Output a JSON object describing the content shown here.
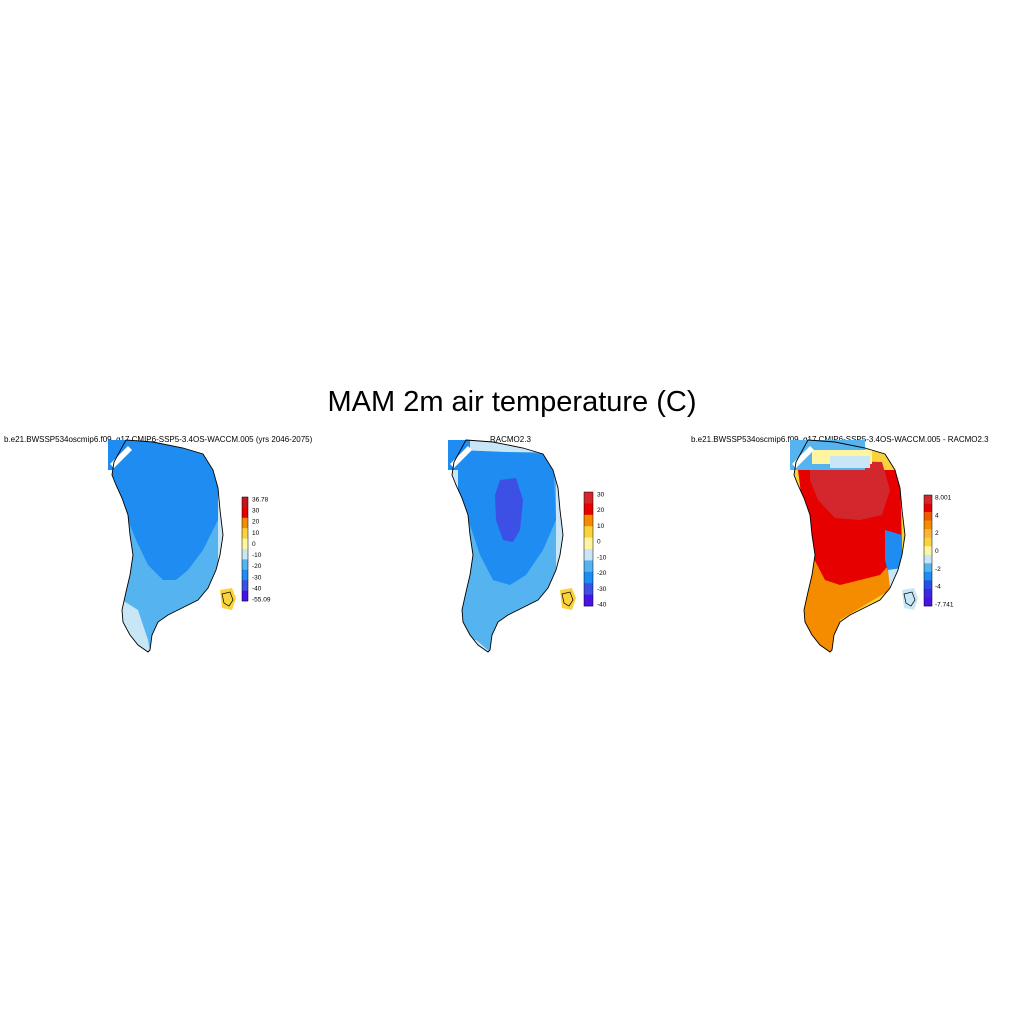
{
  "figure": {
    "title": "MAM 2m air temperature (C)"
  },
  "panels": [
    {
      "id": "model",
      "title": "b.e21.BWSSP534oscmip6.f09_g17.CMIP6-SSP5-3.4OS-WACCM.005 (yrs 2046-2075)",
      "colorbar": {
        "labels": [
          "36.78",
          "30",
          "20",
          "10",
          "0",
          "-10",
          "-20",
          "-30",
          "-40",
          "-55.09"
        ],
        "colors": [
          "#c8141e",
          "#e60000",
          "#f58c00",
          "#fad23c",
          "#fff5a0",
          "#c8e6f5",
          "#55b4f0",
          "#1e8cf0",
          "#3c50e6",
          "#4614e6"
        ]
      }
    },
    {
      "id": "racmo",
      "title": "RACMO2.3",
      "colorbar": {
        "labels": [
          "30",
          "20",
          "10",
          "0",
          "-10",
          "-20",
          "-30",
          "-40"
        ],
        "colors": [
          "#d2282d",
          "#e60000",
          "#f58c00",
          "#fad23c",
          "#fff5a0",
          "#c8e6f5",
          "#55b4f0",
          "#1e8cf0",
          "#3c50e6",
          "#4614e6"
        ]
      }
    },
    {
      "id": "diff",
      "title": "b.e21.BWSSP534oscmip6.f09_g17.CMIP6-SSP5-3.4OS-WACCM.005 - RACMO2.3",
      "colorbar": {
        "labels": [
          "8.001",
          "4",
          "2",
          "0",
          "-2",
          "-4",
          "-7.741"
        ],
        "colors": [
          "#d2282d",
          "#e60000",
          "#f05a00",
          "#f58c00",
          "#fab43c",
          "#fad23c",
          "#fff5a0",
          "#c8e6f5",
          "#55b4f0",
          "#1e8cf0",
          "#2850e6",
          "#3c28e6",
          "#4614e6"
        ]
      }
    }
  ]
}
